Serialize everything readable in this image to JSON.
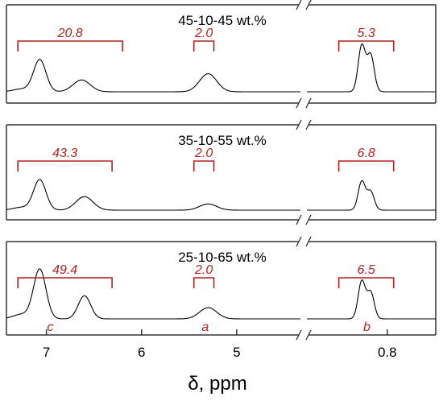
{
  "chart_data": {
    "type": "line",
    "xlabel": "δ, ppm",
    "x_axis": {
      "reversed": true,
      "broken": true,
      "segments": [
        {
          "range": [
            7.42,
            4.33
          ]
        },
        {
          "range": [
            1.43,
            0.42
          ]
        }
      ],
      "tick_labels": [
        {
          "label": "7",
          "value": 7.0
        },
        {
          "label": "6",
          "value": 6.0
        },
        {
          "label": "5",
          "value": 5.0
        },
        {
          "label": "0.8",
          "value": 0.8
        }
      ]
    },
    "panels": [
      {
        "label": "45-10-45 wt.%",
        "integrals": [
          {
            "value": "20.8",
            "from": 7.3,
            "to": 6.2
          },
          {
            "value": "2.0",
            "from": 5.45,
            "to": 5.24
          },
          {
            "value": "5.3",
            "from": 1.18,
            "to": 0.75
          }
        ],
        "peaks": [
          {
            "x": 7.26,
            "h": 0.05
          },
          {
            "x": 7.07,
            "h": 0.57
          },
          {
            "x": 6.63,
            "h": 0.21
          },
          {
            "x": 5.3,
            "h": 0.32
          },
          {
            "x": 1.0,
            "h": 0.82
          },
          {
            "x": 0.93,
            "h": 0.65
          }
        ]
      },
      {
        "label": "35-10-55 wt.%",
        "integrals": [
          {
            "value": "43.3",
            "from": 7.3,
            "to": 6.31
          },
          {
            "value": "2.0",
            "from": 5.45,
            "to": 5.24
          },
          {
            "value": "6.8",
            "from": 1.18,
            "to": 0.75
          }
        ],
        "peaks": [
          {
            "x": 7.26,
            "h": 0.05
          },
          {
            "x": 7.07,
            "h": 0.54
          },
          {
            "x": 6.6,
            "h": 0.24
          },
          {
            "x": 5.3,
            "h": 0.11
          },
          {
            "x": 1.0,
            "h": 0.51
          },
          {
            "x": 0.93,
            "h": 0.33
          }
        ]
      },
      {
        "label": "25-10-65 wt.%",
        "integrals": [
          {
            "value": "49.4",
            "from": 7.3,
            "to": 6.31
          },
          {
            "value": "2.0",
            "from": 5.45,
            "to": 5.24
          },
          {
            "value": "6.5",
            "from": 1.18,
            "to": 0.75
          }
        ],
        "peaks": [
          {
            "x": 7.26,
            "h": 0.08
          },
          {
            "x": 7.07,
            "h": 0.88
          },
          {
            "x": 6.6,
            "h": 0.41
          },
          {
            "x": 5.3,
            "h": 0.2
          },
          {
            "x": 1.0,
            "h": 0.67
          },
          {
            "x": 0.93,
            "h": 0.47
          }
        ]
      }
    ],
    "peak_labels": [
      {
        "label": "c",
        "x": 6.96
      },
      {
        "label": "a",
        "x": 5.33
      },
      {
        "label": "b",
        "x": 0.96
      }
    ],
    "colors": {
      "integral": "#b22222",
      "line": "#000000",
      "frame": "#333333"
    }
  }
}
